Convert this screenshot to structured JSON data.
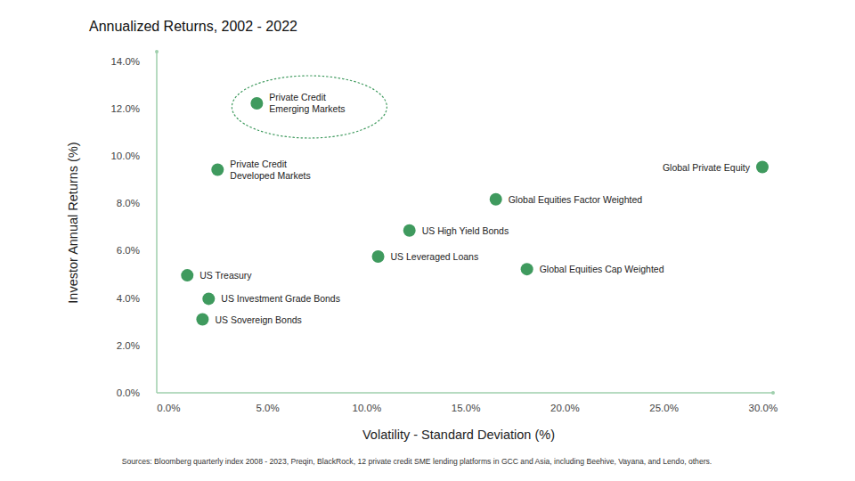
{
  "chart_data": {
    "type": "scatter",
    "title": "Annualized Returns, 2002 - 2022",
    "x_label": "Volatility - Standard Deviation (%)",
    "y_label": "Investor Annual Returns (%)",
    "source": "Sources: Bloomberg quarterly index 2008 - 2023, Preqin, BlackRock, 12 private credit SME lending platforms in GCC and Asia, including Beehive, Vayana, and Lendo, others.",
    "series": [
      {
        "color": "#3f9a5e",
        "marker": "circle",
        "x": [
          4.45,
          2.47,
          29.96,
          16.51,
          12.15,
          10.57,
          18.08,
          0.94,
          2.02,
          1.71
        ],
        "values": [
          12.22,
          9.42,
          9.53,
          8.17,
          6.85,
          5.75,
          5.22,
          4.96,
          3.97,
          3.1
        ],
        "labels": [
          [
            "Private Credit",
            "Emerging Markets"
          ],
          [
            "Private Credit",
            "Developed Markets"
          ],
          [
            "Global Private Equity"
          ],
          [
            "Global Equities Factor Weighted"
          ],
          [
            "US High Yield Bonds"
          ],
          [
            "US Leveraged Loans"
          ],
          [
            "Global Equities Cap Weighted"
          ],
          [
            "US Treasury"
          ],
          [
            "US Investment Grade Bonds"
          ],
          [
            "US Sovereign  Bonds"
          ]
        ]
      }
    ],
    "xlim": [
      -0.6,
      30.5
    ],
    "ylim": [
      0,
      14.4
    ],
    "xticks": [
      {
        "value": 0,
        "label": "0.0%"
      },
      {
        "value": 5,
        "label": "5.0%"
      },
      {
        "value": 10,
        "label": "10.0%"
      },
      {
        "value": 15,
        "label": "15.0%"
      },
      {
        "value": 20,
        "label": "20.0%"
      },
      {
        "value": 25,
        "label": "25.0%"
      },
      {
        "value": 30,
        "label": "30.0%"
      }
    ],
    "yticks": [
      {
        "value": 0,
        "label": "0.0%"
      },
      {
        "value": 2,
        "label": "2.0%"
      },
      {
        "value": 4,
        "label": "4.0%"
      },
      {
        "value": 6,
        "label": "6.0%"
      },
      {
        "value": 8,
        "label": "8.0%"
      },
      {
        "value": 10,
        "label": "10.0%"
      },
      {
        "value": 12,
        "label": "12.0%"
      },
      {
        "value": 14,
        "label": "14.0%"
      }
    ],
    "grid": false
  }
}
